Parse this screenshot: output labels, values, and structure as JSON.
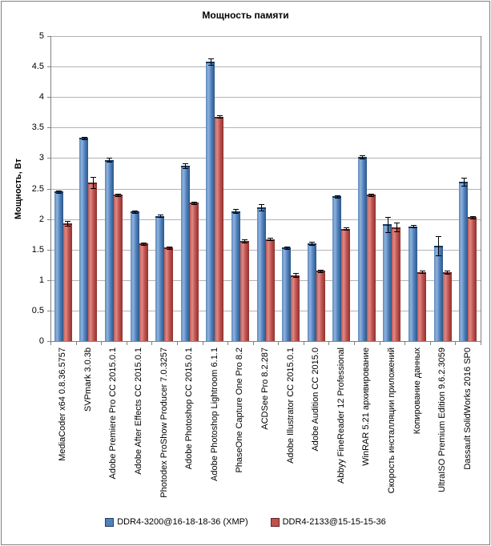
{
  "title": "Мощность памяти",
  "y_axis_label": "Мощность, Вт",
  "colors": {
    "series_blue": "#4F81BD",
    "series_red": "#C0504D",
    "gridline": "#B3B3B3",
    "axis": "#808080",
    "error_bar": "#000000"
  },
  "chart_data": {
    "type": "bar",
    "title": "Мощность памяти",
    "xlabel": "",
    "ylabel": "Мощность, Вт",
    "ylim": [
      0,
      5
    ],
    "ytick_step": 0.5,
    "ytick_labels": [
      "0",
      "0.5",
      "1",
      "1.5",
      "2",
      "2.5",
      "3",
      "3.5",
      "4",
      "4.5",
      "5"
    ],
    "grid": true,
    "legend_position": "bottom",
    "error_bars": true,
    "categories": [
      "MediaCoder x64 0.8.36.5757",
      "SVPmark 3.0.3b",
      "Adobe Premiere Pro CC 2015.0.1",
      "Adobe After Effects CC 2015.0.1",
      "Photodex ProShow Producer 7.0.3257",
      "Adobe Photoshop CC 2015.0.1",
      "Adobe Photoshop Lightroom 6.1.1",
      "PhaseOne Capture One Pro 8.2",
      "ACDSee Pro 8.2.287",
      "Adobe Illustrator CC 2015.0.1",
      "Adobe Audition CC 2015.0",
      "Abbyy FineReader 12 Professional",
      "WinRAR 5.21 архивирование",
      "Скорость инсталляции приложений",
      "Копирование данных",
      "UltraISO Premium Edition 9.6.2.3059",
      "Dassault SolidWorks 2016 SP0"
    ],
    "series": [
      {
        "name": "DDR4-3200@16-18-18-36 (XMP)",
        "color": "#4F81BD",
        "values": [
          2.45,
          3.33,
          2.97,
          2.12,
          2.05,
          2.87,
          4.58,
          2.13,
          2.19,
          1.53,
          1.6,
          2.37,
          3.02,
          1.91,
          1.88,
          1.56,
          2.61
        ],
        "errors": [
          0.02,
          0.02,
          0.03,
          0.02,
          0.02,
          0.04,
          0.05,
          0.03,
          0.05,
          0.02,
          0.03,
          0.02,
          0.03,
          0.13,
          0.02,
          0.16,
          0.07
        ]
      },
      {
        "name": "DDR4-2133@15-15-15-36",
        "color": "#C0504D",
        "values": [
          1.93,
          2.6,
          2.4,
          1.6,
          1.53,
          2.27,
          3.68,
          1.64,
          1.67,
          1.08,
          1.15,
          1.84,
          2.4,
          1.87,
          1.13,
          1.13,
          2.03
        ],
        "errors": [
          0.04,
          0.09,
          0.02,
          0.02,
          0.02,
          0.02,
          0.02,
          0.03,
          0.02,
          0.03,
          0.02,
          0.02,
          0.02,
          0.07,
          0.02,
          0.03,
          0.02
        ]
      }
    ]
  }
}
